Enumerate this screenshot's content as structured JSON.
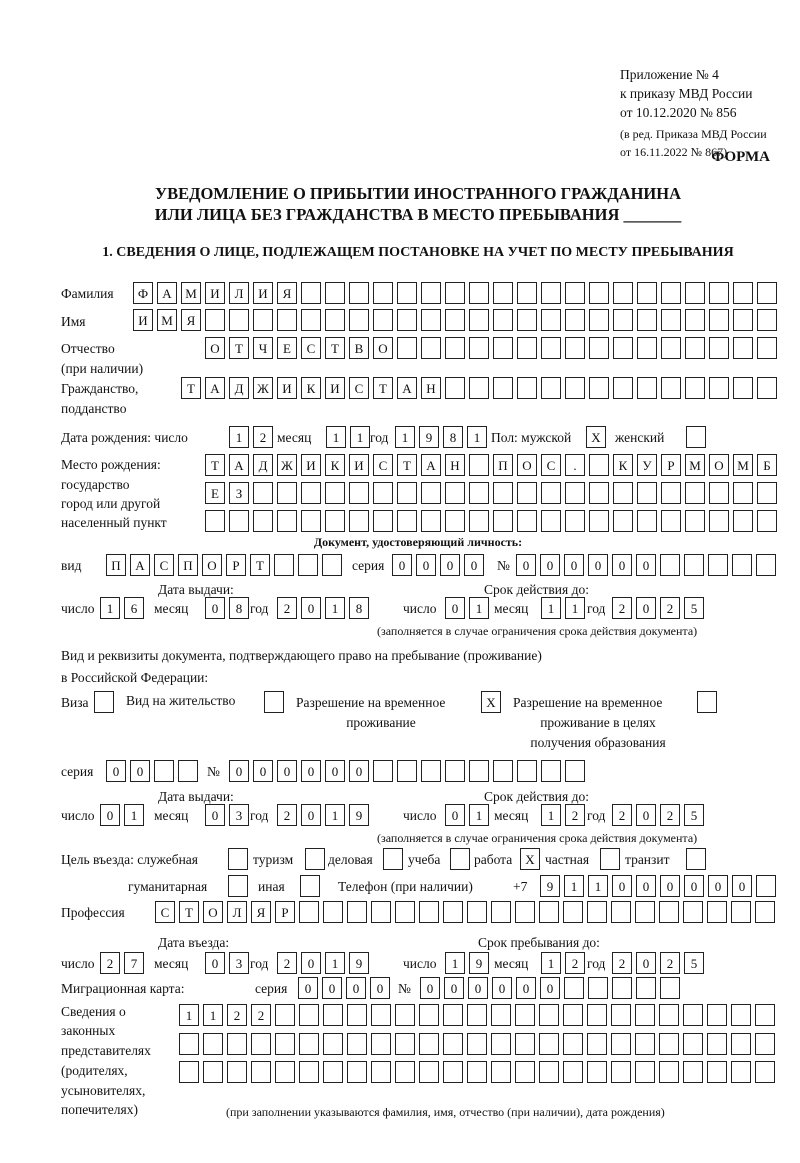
{
  "header": {
    "appendix": "Приложение № 4",
    "order": "к приказу МВД России",
    "order_date": "от 10.12.2020 № 856",
    "revision1": "(в ред. Приказа МВД России",
    "revision2": "от 16.11.2022 № 867)",
    "form_label": "ФОРМА",
    "title1": "УВЕДОМЛЕНИЕ О ПРИБЫТИИ ИНОСТРАННОГО ГРАЖДАНИНА",
    "title2": "ИЛИ ЛИЦА БЕЗ ГРАЖДАНСТВА В МЕСТО ПРЕБЫВАНИЯ _______"
  },
  "section1": {
    "heading": "1. СВЕДЕНИЯ О ЛИЦЕ, ПОДЛЕЖАЩЕМ ПОСТАНОВКЕ НА УЧЕТ ПО МЕСТУ ПРЕБЫВАНИЯ",
    "surname": {
      "label": "Фамилия",
      "value": "ФАМИЛИЯ"
    },
    "name": {
      "label": "Имя",
      "value": "ИМЯ"
    },
    "patronymic": {
      "label1": "Отчество",
      "label2": "(при наличии)",
      "value": "ОТЧЕСТВО"
    },
    "citizenship": {
      "label1": "Гражданство,",
      "label2": "подданство",
      "value": "ТАДЖИКИСТАН"
    },
    "birth_date": {
      "label": "Дата рождения:  число",
      "day": "12",
      "month_label": "месяц",
      "month": "11",
      "year_label": "год",
      "year": "1981"
    },
    "sex": {
      "label": "Пол: мужской",
      "male": "X",
      "female_label": "женский",
      "female": ""
    },
    "birth_place": {
      "label1": "Место рождения:",
      "label2": "государство",
      "label3": "город или другой",
      "label4": "населенный пункт",
      "row1": "ТАДЖИКИСТАН ПОС. КУРМОМБ",
      "row2": "ЕЗ",
      "row3": ""
    },
    "id_document": {
      "heading": "Документ, удостоверяющий личность:",
      "type_label": "вид",
      "type": "ПАСПОРТ",
      "series_label": "серия",
      "series": "0000",
      "number_label": "№",
      "number": "000000",
      "issue_label": "Дата выдачи:",
      "valid_label": "Срок действия до:",
      "day_label": "число",
      "month_label": "месяц",
      "year_label": "год",
      "issue_day": "16",
      "issue_month": "08",
      "issue_year": "2018",
      "valid_day": "01",
      "valid_month": "11",
      "valid_year": "2025",
      "note": "(заполняется в случае ограничения срока действия документа)"
    },
    "stay_document": {
      "label1": "Вид и реквизиты документа, подтверждающего право на пребывание (проживание)",
      "label2": "в Российской Федерации:",
      "visa_label": "Виза",
      "visa": "",
      "residence_label": "Вид на жительство",
      "residence": "",
      "temp_label1": "Разрешение на временное",
      "temp_label2": "проживание",
      "temp": "X",
      "edu_label1": "Разрешение на временное",
      "edu_label2": "проживание в целях",
      "edu_label3": "получения образования",
      "edu": "",
      "series_label": "серия",
      "series": "00",
      "number_label": "№",
      "number": "000000",
      "issue_label": "Дата выдачи:",
      "valid_label": "Срок действия до:",
      "day_label": "число",
      "month_label": "месяц",
      "year_label": "год",
      "issue_day": "01",
      "issue_month": "03",
      "issue_year": "2019",
      "valid_day": "01",
      "valid_month": "12",
      "valid_year": "2025",
      "note": "(заполняется в случае ограничения срока действия документа)"
    },
    "purpose": {
      "label": "Цель въезда: служебная",
      "official": "",
      "tourism_label": "туризм",
      "tourism": "",
      "business_label": "деловая",
      "business": "",
      "study_label": "учеба",
      "study": "",
      "work_label": "работа",
      "work": "X",
      "private_label": "частная",
      "private": "",
      "transit_label": "транзит",
      "transit": "",
      "humanitarian_label": "гуманитарная",
      "humanitarian": "",
      "other_label": "иная",
      "other": ""
    },
    "phone": {
      "label": "Телефон (при наличии)",
      "prefix": "+7",
      "value": "911000000"
    },
    "profession": {
      "label": "Профессия",
      "value": "СТОЛЯР"
    },
    "entry": {
      "entry_label": "Дата въезда:",
      "stay_label": "Срок пребывания до:",
      "day_label": "число",
      "month_label": "месяц",
      "year_label": "год",
      "entry_day": "27",
      "entry_month": "03",
      "entry_year": "2019",
      "stay_day": "19",
      "stay_month": "12",
      "stay_year": "2025"
    },
    "migration_card": {
      "label": "Миграционная карта:",
      "series_label": "серия",
      "series": "0000",
      "number_label": "№",
      "number": "000000"
    },
    "representatives": {
      "label1": "Сведения о",
      "label2": "законных",
      "label3": "представителях",
      "label4": "(родителях,",
      "label5": "усыновителях,",
      "label6": "попечителях)",
      "row1": "1122",
      "row2": "",
      "row3": "",
      "note": "(при заполнении указываются фамилия, имя, отчество (при наличии), дата рождения)"
    }
  }
}
